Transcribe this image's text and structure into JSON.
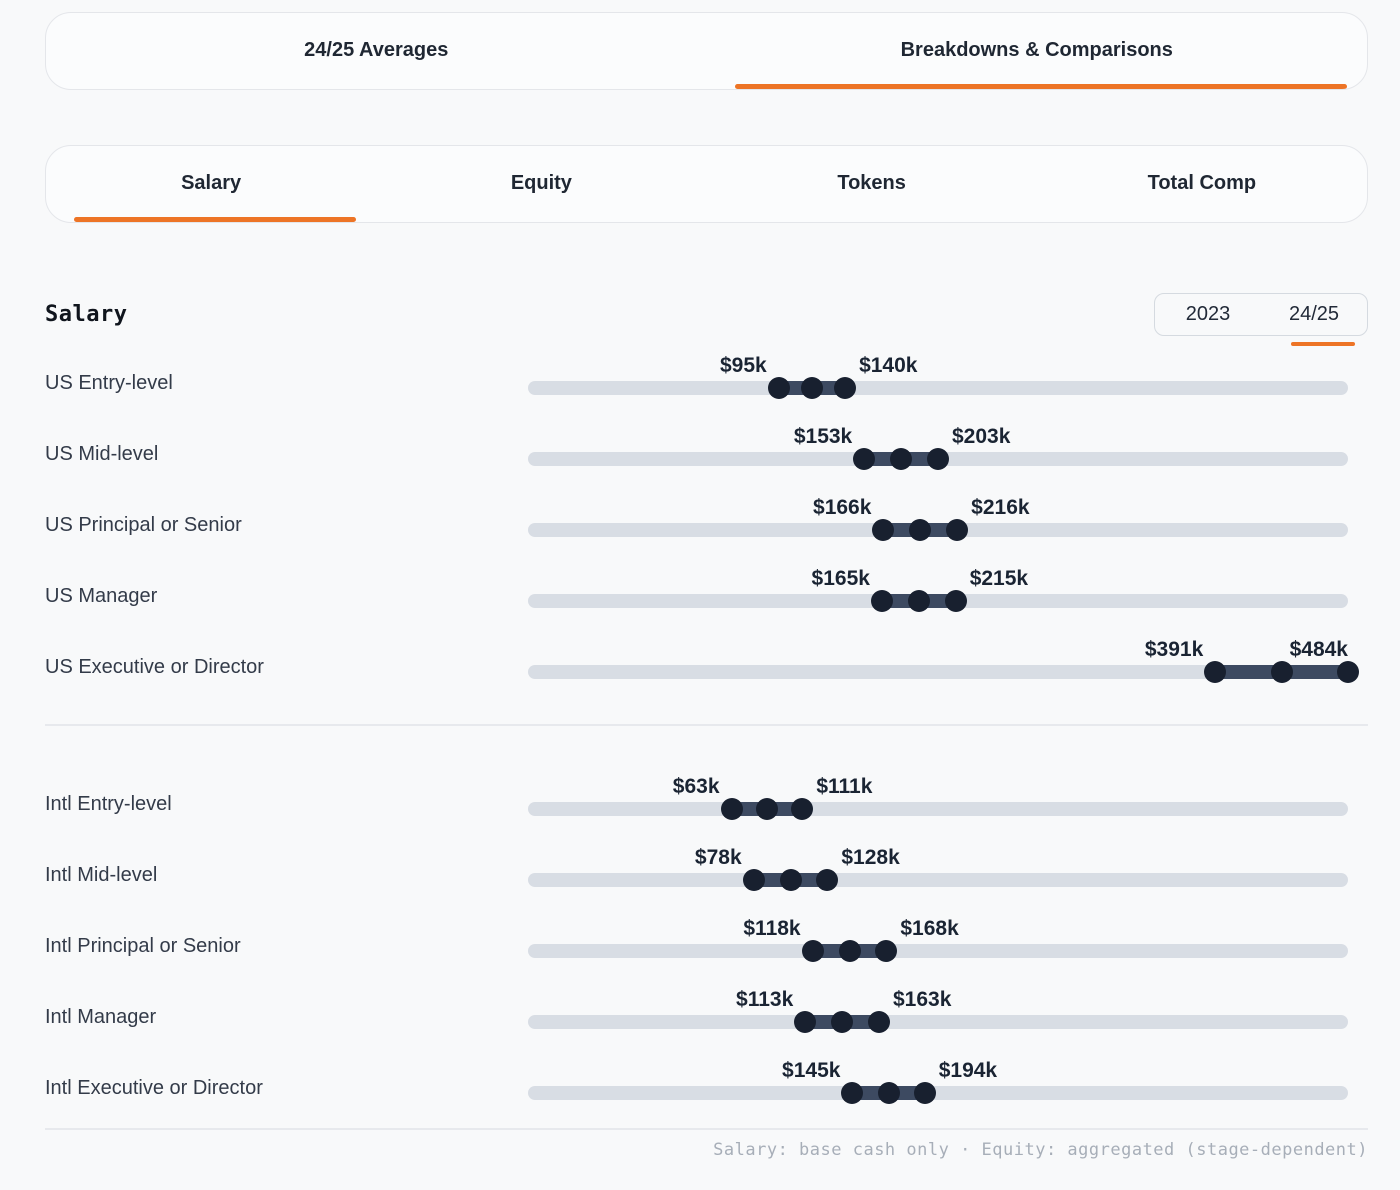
{
  "top_tabs": [
    {
      "label": "24/25 Averages",
      "active": false
    },
    {
      "label": "Breakdowns & Comparisons",
      "active": true
    }
  ],
  "metric_tabs": [
    {
      "label": "Salary",
      "active": true
    },
    {
      "label": "Equity",
      "active": false
    },
    {
      "label": "Tokens",
      "active": false
    },
    {
      "label": "Total Comp",
      "active": false
    }
  ],
  "section": {
    "title": "Salary"
  },
  "year_toggle": {
    "options": [
      {
        "label": "2023",
        "active": false
      },
      {
        "label": "24/25",
        "active": true
      }
    ]
  },
  "footer_note": "Salary: base cash only · Equity: aggregated (stage-dependent)",
  "colors": {
    "accent": "#ed7426",
    "track": "#d8dde4",
    "range_bar": "#3d4a61",
    "dot": "#18202f"
  },
  "chart_data": {
    "type": "dumbbell-range",
    "title": "Salary",
    "unit": "USD thousands (k)",
    "period_selected": "24/25",
    "legend_position": "none",
    "axis": {
      "visible": false,
      "note": "horizontal tracks, no ticks; each row shows min/mid/max dots with min and max labeled"
    },
    "groups": [
      {
        "name": "US",
        "rows": [
          {
            "label": "US Entry-level",
            "min": 95,
            "max": 140,
            "min_label": "$95k",
            "max_label": "$140k"
          },
          {
            "label": "US Mid-level",
            "min": 153,
            "max": 203,
            "min_label": "$153k",
            "max_label": "$203k"
          },
          {
            "label": "US Principal or Senior",
            "min": 166,
            "max": 216,
            "min_label": "$166k",
            "max_label": "$216k"
          },
          {
            "label": "US Manager",
            "min": 165,
            "max": 215,
            "min_label": "$165k",
            "max_label": "$215k"
          },
          {
            "label": "US Executive or Director",
            "min": 391,
            "max": 484,
            "min_label": "$391k",
            "max_label": "$484k"
          }
        ]
      },
      {
        "name": "Intl",
        "rows": [
          {
            "label": "Intl Entry-level",
            "min": 63,
            "max": 111,
            "min_label": "$63k",
            "max_label": "$111k"
          },
          {
            "label": "Intl Mid-level",
            "min": 78,
            "max": 128,
            "min_label": "$78k",
            "max_label": "$128k"
          },
          {
            "label": "Intl Principal or Senior",
            "min": 118,
            "max": 168,
            "min_label": "$118k",
            "max_label": "$168k"
          },
          {
            "label": "Intl Manager",
            "min": 113,
            "max": 163,
            "min_label": "$113k",
            "max_label": "$163k"
          },
          {
            "label": "Intl Executive or Director",
            "min": 145,
            "max": 194,
            "min_label": "$145k",
            "max_label": "$194k"
          }
        ]
      }
    ]
  }
}
